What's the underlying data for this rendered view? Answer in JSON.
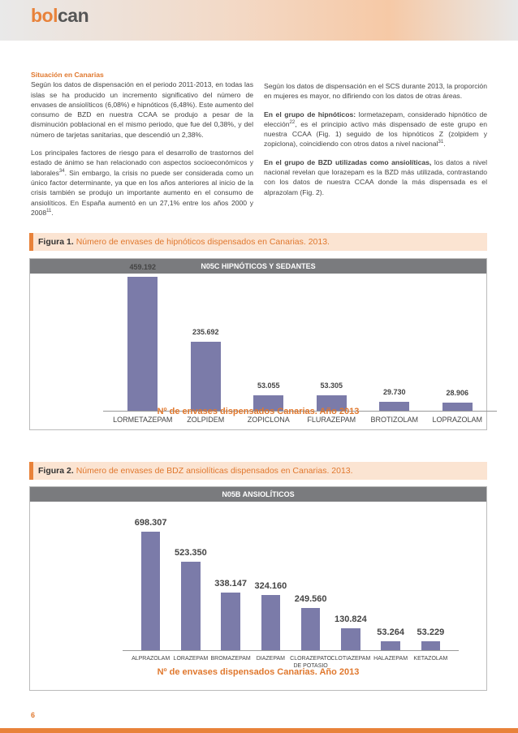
{
  "header": {
    "logo_a": "bol",
    "logo_b": "can"
  },
  "left_column": {
    "heading": "Situación en Canarias",
    "paragraphs": [
      [
        {
          "text": "Según los datos de dispensación en el periodo 2011-2013, en todas las islas se ha producido un incremento significativo del número de envases de ansiolíticos (6,08%) e hipnóticos (6,48%). Este aumento del consumo de BZD en nuestra CCAA se produjo a pesar de la disminución poblacional en el mismo periodo, que fue del 0,38%, y del número de tarjetas sanitarias, que descendió un 2,38%."
        }
      ],
      [
        {
          "text": "Los principales factores de riesgo para el desarrollo de trastornos del estado de ánimo se han relacionado con aspectos socioeconómicos y laborales"
        },
        {
          "sup": "34"
        },
        {
          "text": ". Sin embargo, la crisis no puede ser considerada como un único factor determinante, ya que en los años anteriores al inicio de la crisis también se produjo un importante aumento en el consumo de ansiolíticos. En España aumentó en un 27,1% entre los años 2000 y 2008"
        },
        {
          "sup": "11"
        },
        {
          "text": "."
        }
      ]
    ]
  },
  "right_column": {
    "paragraphs": [
      [
        {
          "text": "Según los datos de dispensación en el SCS durante 2013, la proporción en mujeres es mayor, no difiriendo con los datos de otras áreas."
        }
      ],
      [
        {
          "bold": "En el grupo de hipnóticos:"
        },
        {
          "text": " lormetazepam, considerado hipnótico de elección"
        },
        {
          "sup": "22"
        },
        {
          "text": ", es el principio activo más dispensado de este grupo en nuestra CCAA (Fig. 1) seguido de los hipnóticos Z (zolpidem y zopiclona), coincidiendo con otros datos a nivel nacional"
        },
        {
          "sup": "31"
        },
        {
          "text": "."
        }
      ],
      [
        {
          "bold": "En el grupo de BZD utilizadas como ansiolíticas,"
        },
        {
          "text": " los datos a nivel nacional revelan que lorazepam es la BZD más utilizada, contrastando con los datos de nuestra CCAA donde la más dispensada es el alprazolam (Fig. 2)."
        }
      ]
    ]
  },
  "figures": [
    {
      "label": "Figura 1.",
      "caption": "Número de envases de hipnóticos dispensados en Canarias. 2013."
    },
    {
      "label": "Figura 2.",
      "caption": "Número de envases de BDZ ansiolíticas dispensados en Canarias. 2013."
    }
  ],
  "chart_data": [
    {
      "type": "bar",
      "title": "N05C HIPNÓTICOS Y SEDANTES",
      "xlabel": "Nº de envases dispensados Canarias. Año 2013",
      "color": "#7b7ba9",
      "categories": [
        "LORMETAZEPAM",
        "ZOLPIDEM",
        "ZOPICLONA",
        "FLURAZEPAM",
        "BROTIZOLAM",
        "LOPRAZOLAM"
      ],
      "values": [
        459192,
        235692,
        53055,
        53305,
        29730,
        28906
      ],
      "value_labels": [
        "459.192",
        "235.692",
        "53.055",
        "53.305",
        "29.730",
        "28.906"
      ]
    },
    {
      "type": "bar",
      "title": "N05B ANSIOLÍTICOS",
      "xlabel": "Nº de envases dispensados Canarias. Año 2013",
      "color": "#7b7ba9",
      "categories": [
        "ALPRAZOLAM",
        "LORAZEPAM",
        "BROMAZEPAM",
        "DIAZEPAM",
        "CLORAZEPATO DE POTASIO",
        "CLOTIAZEPAM",
        "HALAZEPAM",
        "KETAZOLAM"
      ],
      "values": [
        698307,
        523350,
        338147,
        324160,
        249560,
        130824,
        53264,
        53229
      ],
      "value_labels": [
        "698.307",
        "523.350",
        "338.147",
        "324.160",
        "249.560",
        "130.824",
        "53.264",
        "53.229"
      ]
    }
  ],
  "footer": {
    "page": "6"
  }
}
